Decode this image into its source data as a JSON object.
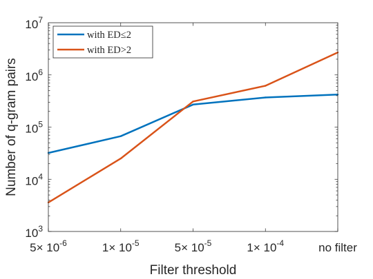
{
  "chart_data": {
    "type": "line",
    "x_categories": [
      "5× 10^-6",
      "1× 10^-5",
      "5× 10^-5",
      "1× 10^-4",
      "no filter"
    ],
    "x_tick_labels": [
      {
        "mantissa": "5× 10",
        "exponent": "-6"
      },
      {
        "mantissa": "1× 10",
        "exponent": "-5"
      },
      {
        "mantissa": "5× 10",
        "exponent": "-5"
      },
      {
        "mantissa": "1× 10",
        "exponent": "-4"
      },
      {
        "mantissa": "no filter",
        "exponent": ""
      }
    ],
    "y_scale": "log",
    "ylim": [
      1000,
      10000000
    ],
    "y_ticks": [
      1000,
      10000,
      100000,
      1000000,
      10000000
    ],
    "y_tick_labels": [
      {
        "base": "10",
        "exponent": "3"
      },
      {
        "base": "10",
        "exponent": "4"
      },
      {
        "base": "10",
        "exponent": "5"
      },
      {
        "base": "10",
        "exponent": "6"
      },
      {
        "base": "10",
        "exponent": "7"
      }
    ],
    "xlabel": "Filter threshold",
    "ylabel": "Number of q-gram pairs",
    "grid": false,
    "legend_position": "top-left",
    "series": [
      {
        "name": "with ED≤2",
        "color": "#0072BD",
        "values": [
          32000,
          67000,
          270000,
          370000,
          420000
        ]
      },
      {
        "name": "with ED>2",
        "color": "#D95319",
        "values": [
          3600,
          25000,
          310000,
          620000,
          2700000
        ]
      }
    ]
  }
}
